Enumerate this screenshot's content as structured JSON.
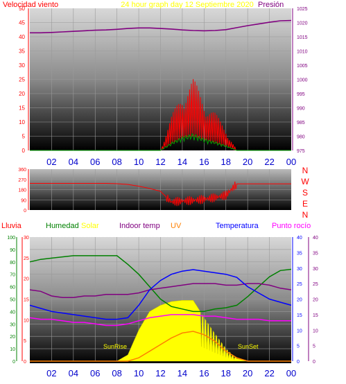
{
  "header": {
    "left_title": "Velocidad viento",
    "center_title": "24 hour graph day   12 Septiembre 2020",
    "right_title": "Presión"
  },
  "wind_speed_pressure": {
    "left_ticks": [
      "0",
      "5",
      "10",
      "15",
      "20",
      "25",
      "30",
      "35",
      "40",
      "45",
      "50"
    ],
    "right_ticks": [
      "975",
      "980",
      "985",
      "990",
      "995",
      "1000",
      "1005",
      "1010",
      "1015",
      "1020",
      "1025"
    ],
    "hour_ticks": [
      "02",
      "04",
      "06",
      "08",
      "10",
      "12",
      "14",
      "16",
      "18",
      "20",
      "22",
      "00"
    ]
  },
  "wind_direction": {
    "left_ticks": [
      "0",
      "90",
      "180",
      "270",
      "360"
    ],
    "compass_labels": [
      "N",
      "W",
      "S",
      "E",
      "N"
    ]
  },
  "bottom_legend": {
    "lluvia": "Lluvia",
    "humedad": "Humedad",
    "solar": "Solar",
    "indoor": "Indoor temp",
    "uv": "UV",
    "temperatura": "Temperatura",
    "rocio": "Punto rocío"
  },
  "bottom_panel": {
    "humidity_ticks": [
      "0",
      "10",
      "20",
      "30",
      "40",
      "50",
      "60",
      "70",
      "80",
      "90",
      "100"
    ],
    "rain_ticks": [
      "0",
      "5",
      "10",
      "15",
      "20",
      "25",
      "30"
    ],
    "temp_ticks": [
      "0",
      "5",
      "10",
      "15",
      "20",
      "25",
      "30",
      "35",
      "40"
    ],
    "sunrise": "SunRise",
    "sunset": "SunSet"
  },
  "colors": {
    "wind": "#ff0000",
    "pressure": "#800080",
    "direction": "#ff0000",
    "humidity": "#008000",
    "solar": "#ffff00",
    "indoor": "#800080",
    "uv": "#ff8000",
    "temperature": "#0000ff",
    "dewpoint": "#ff00ff",
    "tick_label_hours": "#0000cc"
  },
  "chart_data": [
    {
      "type": "line",
      "title": "24 hour graph day   12 Septiembre 2020",
      "x": [
        0,
        1,
        2,
        3,
        4,
        5,
        6,
        7,
        8,
        9,
        10,
        11,
        12,
        13,
        14,
        15,
        16,
        17,
        18,
        19,
        20,
        21,
        22,
        23,
        24
      ],
      "series": [
        {
          "name": "Presión",
          "values": [
            1016.4,
            1016.4,
            1016.5,
            1016.7,
            1016.9,
            1017.1,
            1017.3,
            1017.4,
            1017.6,
            1017.9,
            1018.1,
            1018.1,
            1017.9,
            1017.7,
            1017.4,
            1017.2,
            1017.1,
            1017.2,
            1017.5,
            1018.2,
            1018.9,
            1019.5,
            1020.1,
            1020.6,
            1020.7
          ]
        },
        {
          "name": "Velocidad viento",
          "values": [
            0,
            0,
            0,
            0,
            0,
            0,
            0,
            0,
            0,
            0,
            0,
            0,
            0,
            8,
            14,
            17,
            12,
            9,
            5,
            0,
            0,
            0,
            0,
            0,
            0
          ]
        }
      ],
      "ylim_left": [
        0,
        50
      ],
      "ylim_right": [
        975,
        1025
      ]
    },
    {
      "type": "line",
      "x": [
        0,
        1,
        2,
        3,
        4,
        5,
        6,
        7,
        8,
        9,
        10,
        11,
        12,
        13,
        14,
        15,
        16,
        17,
        18,
        19,
        20,
        21,
        22,
        23,
        24
      ],
      "series": [
        {
          "name": "Dirección",
          "values": [
            235,
            235,
            235,
            235,
            235,
            235,
            235,
            235,
            232,
            225,
            210,
            190,
            165,
            70,
            80,
            85,
            95,
            110,
            130,
            230,
            230,
            230,
            230,
            230,
            230
          ]
        }
      ],
      "ylim": [
        0,
        360
      ]
    },
    {
      "type": "line",
      "x": [
        0,
        1,
        2,
        3,
        4,
        5,
        6,
        7,
        8,
        9,
        10,
        11,
        12,
        13,
        14,
        15,
        16,
        17,
        18,
        19,
        20,
        21,
        22,
        23,
        24
      ],
      "series": [
        {
          "name": "Humedad",
          "values": [
            80,
            82,
            83,
            84,
            85,
            85,
            85,
            85,
            85,
            78,
            70,
            60,
            50,
            44,
            42,
            40,
            40,
            42,
            43,
            45,
            52,
            60,
            68,
            73,
            74
          ]
        },
        {
          "name": "Solar",
          "values": [
            0,
            0,
            0,
            0,
            0,
            0,
            0,
            0,
            0,
            5,
            25,
            40,
            45,
            48,
            49,
            49,
            35,
            22,
            10,
            2,
            0,
            0,
            0,
            0,
            0
          ]
        },
        {
          "name": "Indoor temp",
          "values": [
            23,
            22.5,
            21,
            20.5,
            20.5,
            21,
            21,
            21.5,
            21.5,
            21.5,
            22,
            23,
            23.5,
            24,
            24.5,
            25,
            25,
            25,
            24.5,
            24.5,
            25,
            25,
            24.5,
            23.5,
            23
          ]
        },
        {
          "name": "UV",
          "values": [
            0,
            0,
            0,
            0,
            0,
            0,
            0,
            0,
            0,
            0,
            1,
            3,
            5,
            7,
            8.5,
            9,
            8,
            6,
            3,
            1,
            0,
            0,
            0,
            0,
            0
          ]
        },
        {
          "name": "Temperatura",
          "values": [
            18,
            17,
            16,
            15.5,
            15,
            14.5,
            14,
            13.5,
            13.5,
            14,
            18,
            23,
            26,
            28,
            29,
            29.5,
            29,
            28.5,
            28,
            27,
            24,
            22,
            20,
            19,
            18
          ]
        },
        {
          "name": "Punto rocío",
          "values": [
            14,
            13.5,
            13.5,
            13,
            12.5,
            12.5,
            12,
            11.5,
            11.5,
            12,
            13,
            14,
            14.5,
            15,
            15,
            15,
            14.5,
            14.5,
            14,
            13.5,
            13.5,
            13.5,
            13,
            13,
            13
          ]
        },
        {
          "name": "Lluvia",
          "values": [
            0,
            0,
            0,
            0,
            0,
            0,
            0,
            0,
            0,
            0,
            0,
            0,
            0,
            0,
            0,
            0,
            0,
            0,
            0,
            0,
            0,
            0,
            0,
            0,
            0
          ]
        }
      ],
      "ylim_left": [
        0,
        100
      ],
      "ylim_rain": [
        0,
        30
      ],
      "ylim_right": [
        0,
        40
      ]
    }
  ]
}
